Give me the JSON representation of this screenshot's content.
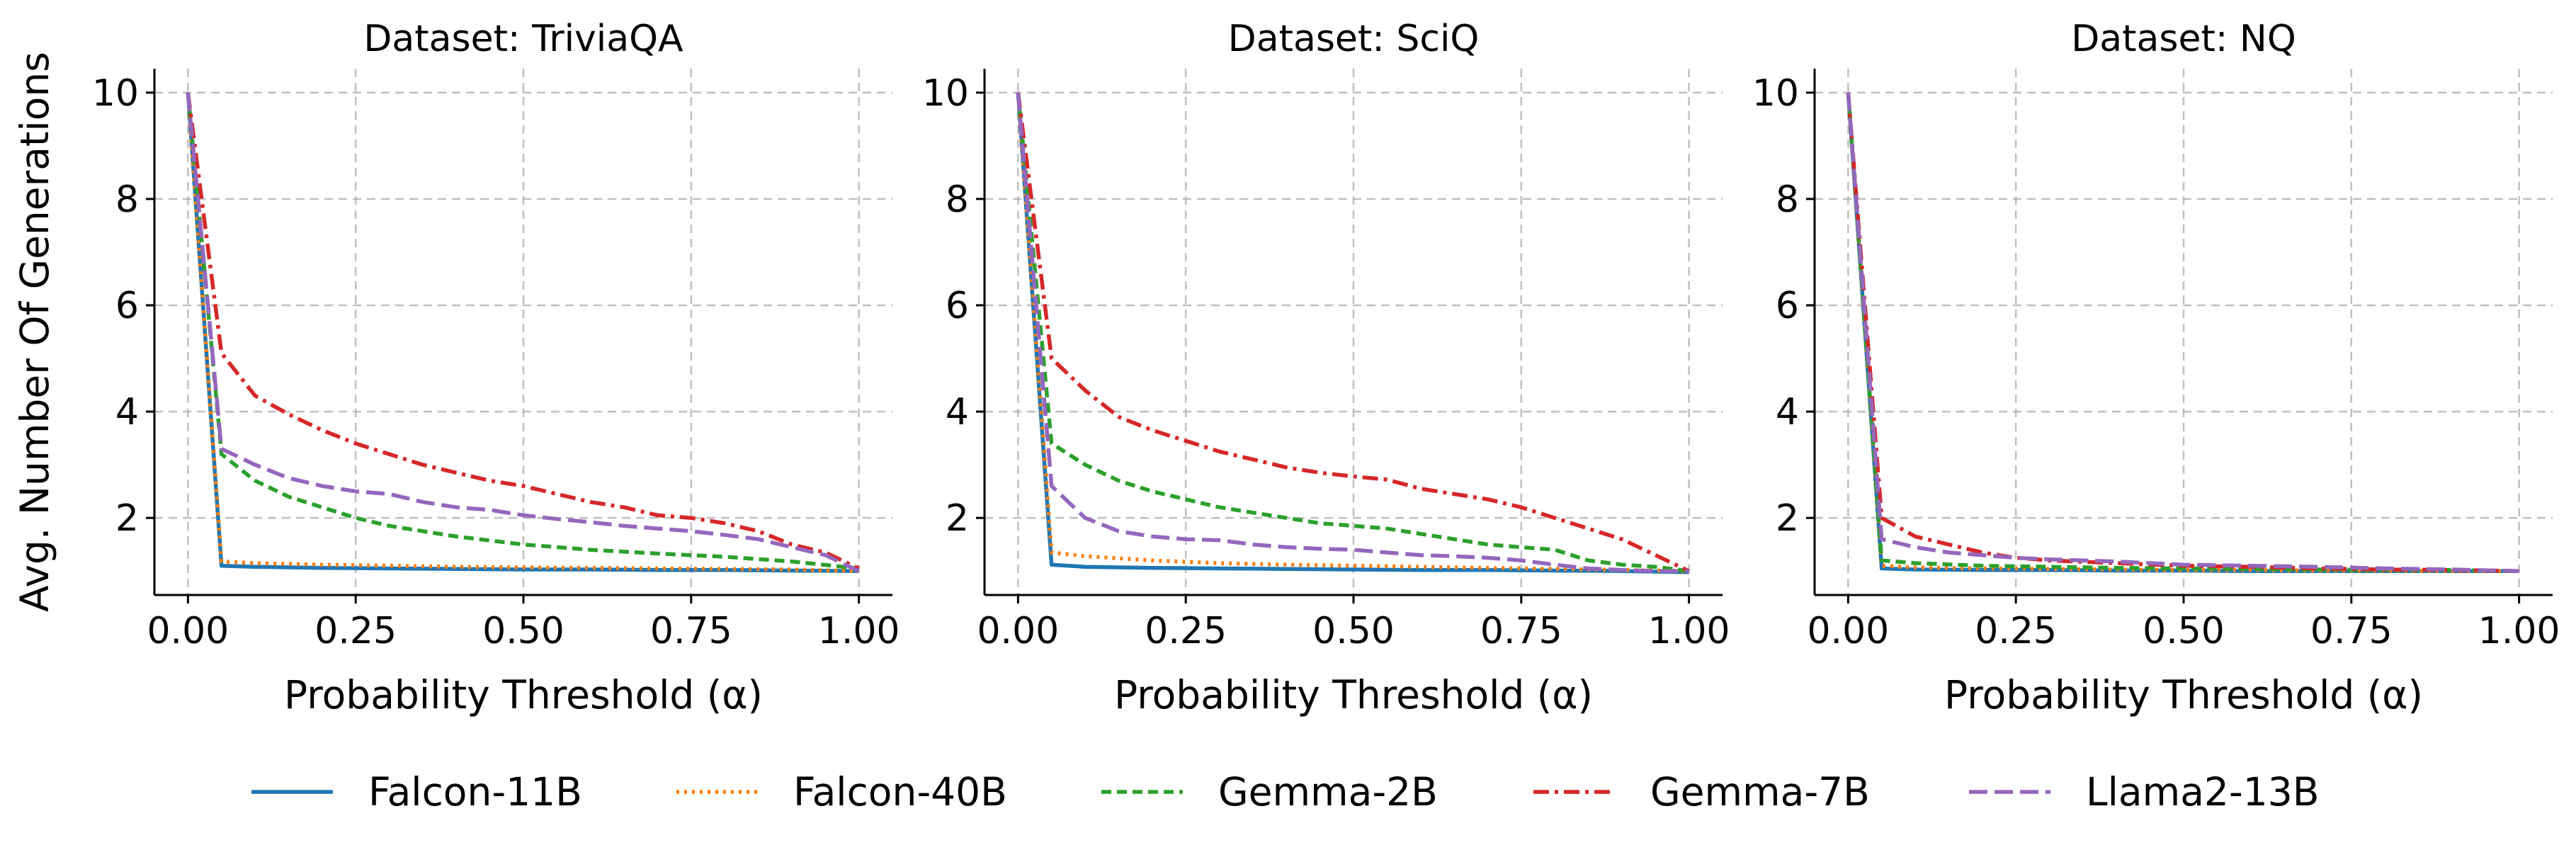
{
  "chart_data": [
    {
      "type": "line",
      "title": "Dataset: TriviaQA",
      "xlabel": "Probability Threshold (α)",
      "ylabel": "Avg. Number Of Generations",
      "xlim": [
        -0.05,
        1.05
      ],
      "ylim": [
        0.55,
        10.45
      ],
      "xticks": [
        0.0,
        0.25,
        0.5,
        0.75,
        1.0
      ],
      "xtick_labels": [
        "0.00",
        "0.25",
        "0.50",
        "0.75",
        "1.00"
      ],
      "yticks": [
        2,
        4,
        6,
        8,
        10
      ],
      "ytick_labels": [
        "2",
        "4",
        "6",
        "8",
        "10"
      ],
      "grid": true,
      "series": [
        {
          "name": "Falcon-11B",
          "x": [
            0,
            0.05,
            0.1,
            0.2,
            0.3,
            0.4,
            0.5,
            0.6,
            0.7,
            0.8,
            0.9,
            1.0
          ],
          "y": [
            10,
            1.1,
            1.08,
            1.06,
            1.05,
            1.04,
            1.03,
            1.03,
            1.02,
            1.02,
            1.01,
            1.0
          ]
        },
        {
          "name": "Falcon-40B",
          "x": [
            0,
            0.05,
            0.1,
            0.2,
            0.3,
            0.4,
            0.5,
            0.6,
            0.7,
            0.8,
            0.9,
            1.0
          ],
          "y": [
            10,
            1.18,
            1.15,
            1.12,
            1.1,
            1.08,
            1.07,
            1.06,
            1.05,
            1.04,
            1.03,
            1.0
          ]
        },
        {
          "name": "Gemma-2B",
          "x": [
            0,
            0.05,
            0.1,
            0.15,
            0.2,
            0.25,
            0.3,
            0.4,
            0.5,
            0.6,
            0.7,
            0.8,
            0.9,
            1.0
          ],
          "y": [
            10,
            3.2,
            2.7,
            2.4,
            2.2,
            2.0,
            1.85,
            1.65,
            1.5,
            1.4,
            1.33,
            1.27,
            1.18,
            1.05
          ]
        },
        {
          "name": "Gemma-7B",
          "x": [
            0,
            0.05,
            0.1,
            0.15,
            0.2,
            0.25,
            0.3,
            0.35,
            0.4,
            0.45,
            0.5,
            0.55,
            0.6,
            0.65,
            0.7,
            0.75,
            0.8,
            0.85,
            0.9,
            0.95,
            1.0
          ],
          "y": [
            10,
            5.1,
            4.3,
            3.95,
            3.65,
            3.4,
            3.2,
            3.0,
            2.85,
            2.7,
            2.6,
            2.45,
            2.3,
            2.2,
            2.05,
            2.0,
            1.9,
            1.75,
            1.5,
            1.35,
            1.05
          ]
        },
        {
          "name": "Llama2-13B",
          "x": [
            0,
            0.05,
            0.1,
            0.15,
            0.2,
            0.25,
            0.3,
            0.35,
            0.4,
            0.45,
            0.5,
            0.55,
            0.6,
            0.65,
            0.7,
            0.75,
            0.8,
            0.85,
            0.9,
            0.95,
            1.0
          ],
          "y": [
            10,
            3.3,
            3.0,
            2.75,
            2.6,
            2.5,
            2.45,
            2.3,
            2.2,
            2.15,
            2.05,
            1.98,
            1.92,
            1.85,
            1.8,
            1.75,
            1.68,
            1.6,
            1.45,
            1.3,
            1.0
          ]
        }
      ]
    },
    {
      "type": "line",
      "title": "Dataset: SciQ",
      "xlabel": "Probability Threshold (α)",
      "ylabel": "",
      "xlim": [
        -0.05,
        1.05
      ],
      "ylim": [
        0.55,
        10.45
      ],
      "xticks": [
        0.0,
        0.25,
        0.5,
        0.75,
        1.0
      ],
      "xtick_labels": [
        "0.00",
        "0.25",
        "0.50",
        "0.75",
        "1.00"
      ],
      "yticks": [
        2,
        4,
        6,
        8,
        10
      ],
      "ytick_labels": [
        "2",
        "4",
        "6",
        "8",
        "10"
      ],
      "grid": true,
      "series": [
        {
          "name": "Falcon-11B",
          "x": [
            0,
            0.05,
            0.1,
            0.2,
            0.3,
            0.4,
            0.5,
            0.6,
            0.7,
            0.8,
            0.9,
            1.0
          ],
          "y": [
            10,
            1.12,
            1.08,
            1.06,
            1.05,
            1.04,
            1.03,
            1.02,
            1.02,
            1.01,
            1.0,
            0.98
          ]
        },
        {
          "name": "Falcon-40B",
          "x": [
            0,
            0.05,
            0.1,
            0.2,
            0.3,
            0.4,
            0.5,
            0.6,
            0.7,
            0.8,
            0.9,
            1.0
          ],
          "y": [
            10,
            1.35,
            1.28,
            1.2,
            1.15,
            1.12,
            1.1,
            1.08,
            1.06,
            1.04,
            1.02,
            1.0
          ]
        },
        {
          "name": "Gemma-2B",
          "x": [
            0,
            0.05,
            0.1,
            0.15,
            0.2,
            0.25,
            0.3,
            0.35,
            0.4,
            0.45,
            0.5,
            0.55,
            0.6,
            0.65,
            0.7,
            0.75,
            0.8,
            0.85,
            0.9,
            0.95,
            1.0
          ],
          "y": [
            10,
            3.4,
            3.0,
            2.7,
            2.5,
            2.35,
            2.2,
            2.1,
            2.0,
            1.9,
            1.85,
            1.8,
            1.7,
            1.6,
            1.5,
            1.45,
            1.4,
            1.2,
            1.12,
            1.08,
            1.0
          ]
        },
        {
          "name": "Gemma-7B",
          "x": [
            0,
            0.05,
            0.1,
            0.15,
            0.2,
            0.25,
            0.3,
            0.35,
            0.4,
            0.45,
            0.5,
            0.55,
            0.6,
            0.65,
            0.7,
            0.75,
            0.8,
            0.85,
            0.9,
            0.95,
            1.0
          ],
          "y": [
            10,
            5.0,
            4.4,
            3.9,
            3.65,
            3.45,
            3.25,
            3.1,
            2.95,
            2.85,
            2.78,
            2.72,
            2.55,
            2.45,
            2.35,
            2.2,
            2.0,
            1.8,
            1.6,
            1.3,
            1.0
          ]
        },
        {
          "name": "Llama2-13B",
          "x": [
            0,
            0.05,
            0.1,
            0.15,
            0.2,
            0.25,
            0.3,
            0.35,
            0.4,
            0.45,
            0.5,
            0.55,
            0.6,
            0.65,
            0.7,
            0.75,
            0.8,
            0.85,
            0.9,
            0.95,
            1.0
          ],
          "y": [
            10,
            2.6,
            2.0,
            1.75,
            1.65,
            1.6,
            1.58,
            1.5,
            1.45,
            1.42,
            1.4,
            1.35,
            1.3,
            1.28,
            1.25,
            1.2,
            1.12,
            1.05,
            1.02,
            1.0,
            1.0
          ]
        }
      ]
    },
    {
      "type": "line",
      "title": "Dataset: NQ",
      "xlabel": "Probability Threshold (α)",
      "ylabel": "",
      "xlim": [
        -0.05,
        1.05
      ],
      "ylim": [
        0.55,
        10.45
      ],
      "xticks": [
        0.0,
        0.25,
        0.5,
        0.75,
        1.0
      ],
      "xtick_labels": [
        "0.00",
        "0.25",
        "0.50",
        "0.75",
        "1.00"
      ],
      "yticks": [
        2,
        4,
        6,
        8,
        10
      ],
      "ytick_labels": [
        "2",
        "4",
        "6",
        "8",
        "10"
      ],
      "grid": true,
      "series": [
        {
          "name": "Falcon-11B",
          "x": [
            0,
            0.05,
            0.1,
            0.2,
            0.3,
            0.4,
            0.5,
            0.6,
            0.7,
            0.8,
            0.9,
            1.0
          ],
          "y": [
            10,
            1.05,
            1.03,
            1.02,
            1.02,
            1.01,
            1.01,
            1.0,
            1.0,
            1.0,
            1.0,
            1.0
          ]
        },
        {
          "name": "Falcon-40B",
          "x": [
            0,
            0.05,
            0.1,
            0.2,
            0.3,
            0.4,
            0.5,
            0.6,
            0.7,
            0.8,
            0.9,
            1.0
          ],
          "y": [
            10,
            1.1,
            1.07,
            1.05,
            1.04,
            1.03,
            1.02,
            1.02,
            1.01,
            1.01,
            1.0,
            1.0
          ]
        },
        {
          "name": "Gemma-2B",
          "x": [
            0,
            0.05,
            0.1,
            0.2,
            0.3,
            0.4,
            0.5,
            0.6,
            0.7,
            0.8,
            0.9,
            1.0
          ],
          "y": [
            10,
            1.2,
            1.15,
            1.1,
            1.08,
            1.06,
            1.05,
            1.04,
            1.03,
            1.02,
            1.02,
            1.0
          ]
        },
        {
          "name": "Gemma-7B",
          "x": [
            0,
            0.05,
            0.1,
            0.15,
            0.2,
            0.25,
            0.3,
            0.4,
            0.5,
            0.6,
            0.7,
            0.8,
            0.9,
            1.0
          ],
          "y": [
            10,
            2.0,
            1.65,
            1.5,
            1.35,
            1.25,
            1.2,
            1.15,
            1.1,
            1.08,
            1.05,
            1.03,
            1.02,
            1.0
          ]
        },
        {
          "name": "Llama2-13B",
          "x": [
            0,
            0.05,
            0.1,
            0.15,
            0.2,
            0.25,
            0.3,
            0.4,
            0.5,
            0.6,
            0.7,
            0.8,
            0.9,
            1.0
          ],
          "y": [
            10,
            1.6,
            1.45,
            1.35,
            1.3,
            1.25,
            1.22,
            1.18,
            1.12,
            1.1,
            1.08,
            1.05,
            1.03,
            1.0
          ]
        }
      ]
    }
  ],
  "legend": {
    "position": "bottom-center",
    "items": [
      {
        "name": "Falcon-11B",
        "color": "#1f77b4",
        "style": "solid"
      },
      {
        "name": "Falcon-40B",
        "color": "#ff7f0e",
        "style": "dotted"
      },
      {
        "name": "Gemma-2B",
        "color": "#2ca02c",
        "style": "dashed"
      },
      {
        "name": "Gemma-7B",
        "color": "#d62728",
        "style": "dashdot"
      },
      {
        "name": "Llama2-13B",
        "color": "#9467bd",
        "style": "longdash"
      }
    ]
  }
}
